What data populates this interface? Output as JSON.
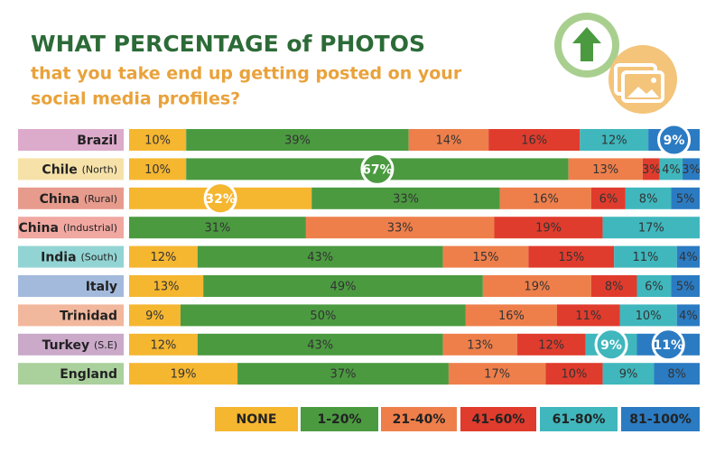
{
  "chart_data": {
    "type": "stacked-bar-horizontal",
    "title": "WHAT PERCENTAGE of PHOTOS",
    "subtitle_lines": [
      "that you take end up getting posted on your",
      "social media profiles?"
    ],
    "categories": [
      "Brazil",
      "Chile",
      "China",
      "China",
      "India",
      "Italy",
      "Trinidad",
      "Turkey",
      "England"
    ],
    "category_notes": [
      null,
      "(North)",
      "(Rural)",
      "(Industrial)",
      "(South)",
      null,
      null,
      "(S.E)",
      null
    ],
    "category_colors": [
      "#dcaacb",
      "#f6e2a8",
      "#e79b8c",
      "#f0a8a1",
      "#92d4d3",
      "#a3badc",
      "#f2b89d",
      "#caa9c9",
      "#aad09c"
    ],
    "xlim": [
      0,
      100
    ],
    "series": [
      {
        "name": "NONE",
        "color": "#f5b630",
        "values": [
          10,
          10,
          32,
          0,
          12,
          13,
          9,
          12,
          19
        ],
        "value_labels": [
          "10%",
          "10%",
          "32%",
          null,
          "12%",
          "13%",
          "9%",
          "12%",
          "19%"
        ]
      },
      {
        "name": "1-20%",
        "color": "#4b9a40",
        "values": [
          39,
          67,
          33,
          31,
          43,
          49,
          50,
          43,
          37
        ],
        "value_labels": [
          "39%",
          "67%",
          "33%",
          "31%",
          "43%",
          "49%",
          "50%",
          "43%",
          "37%"
        ]
      },
      {
        "name": "21-40%",
        "color": "#ee7f4b",
        "values": [
          14,
          13,
          16,
          33,
          15,
          19,
          16,
          13,
          17
        ],
        "value_labels": [
          "14%",
          "13%",
          "16%",
          "33%",
          "15%",
          "19%",
          "16%",
          "13%",
          "17%"
        ]
      },
      {
        "name": "41-60%",
        "color": "#e03c2d",
        "values": [
          16,
          3,
          6,
          19,
          15,
          8,
          11,
          12,
          10
        ],
        "value_labels": [
          "16%",
          "3%",
          "6%",
          "19%",
          "15%",
          "8%",
          "11%",
          "12%",
          "10%"
        ]
      },
      {
        "name": "61-80%",
        "color": "#3fb7bd",
        "values": [
          12,
          4,
          8,
          17,
          11,
          6,
          10,
          9,
          9
        ],
        "value_labels": [
          "12%",
          "4%",
          "8%",
          "17%",
          "11%",
          "6%",
          "10%",
          "9%",
          "9%"
        ]
      },
      {
        "name": "81-100%",
        "color": "#2b7bc2",
        "values": [
          9,
          3,
          5,
          0,
          4,
          5,
          4,
          11,
          8
        ],
        "value_labels": [
          "9%",
          "3%",
          "5%",
          null,
          "4%",
          "5%",
          "4%",
          "11%",
          "8%"
        ]
      }
    ],
    "highlight": [
      [
        5,
        0
      ],
      [
        1,
        1
      ],
      [
        0,
        2
      ],
      [
        4,
        7
      ],
      [
        5,
        7
      ]
    ]
  }
}
